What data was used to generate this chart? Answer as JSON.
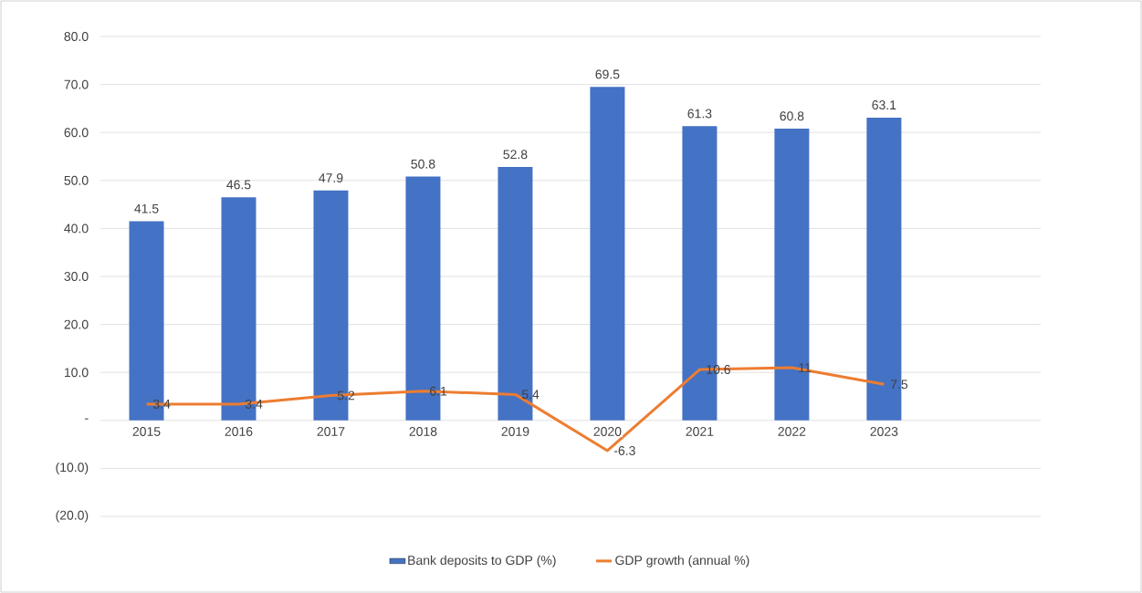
{
  "chart_data": {
    "type": "bar",
    "categories": [
      "2015",
      "2016",
      "2017",
      "2018",
      "2019",
      "2020",
      "2021",
      "2022",
      "2023"
    ],
    "series": [
      {
        "name": "Bank deposits to GDP (%)",
        "color": "#4472c4",
        "values": [
          41.5,
          46.5,
          47.9,
          50.8,
          52.8,
          69.5,
          61.3,
          60.8,
          63.1
        ]
      },
      {
        "name": "GDP growth (annual %)",
        "type": "line",
        "color": "#ed7d31",
        "values": [
          3.4,
          3.4,
          5.2,
          6.1,
          5.4,
          -6.3,
          10.6,
          11,
          7.5
        ]
      }
    ],
    "ylim": [
      -20,
      80
    ],
    "yticks": [
      {
        "value": -20,
        "label": "(20.0)"
      },
      {
        "value": -10,
        "label": "(10.0)"
      },
      {
        "value": 0,
        "label": "-"
      },
      {
        "value": 10,
        "label": "10.0"
      },
      {
        "value": 20,
        "label": "20.0"
      },
      {
        "value": 30,
        "label": "30.0"
      },
      {
        "value": 40,
        "label": "40.0"
      },
      {
        "value": 50,
        "label": "50.0"
      },
      {
        "value": 60,
        "label": "60.0"
      },
      {
        "value": 70,
        "label": "70.0"
      },
      {
        "value": 80,
        "label": "80.0"
      }
    ],
    "grid": "y",
    "legend": "bottom",
    "data_labels": true,
    "marker": "none",
    "line_style": "solid"
  }
}
